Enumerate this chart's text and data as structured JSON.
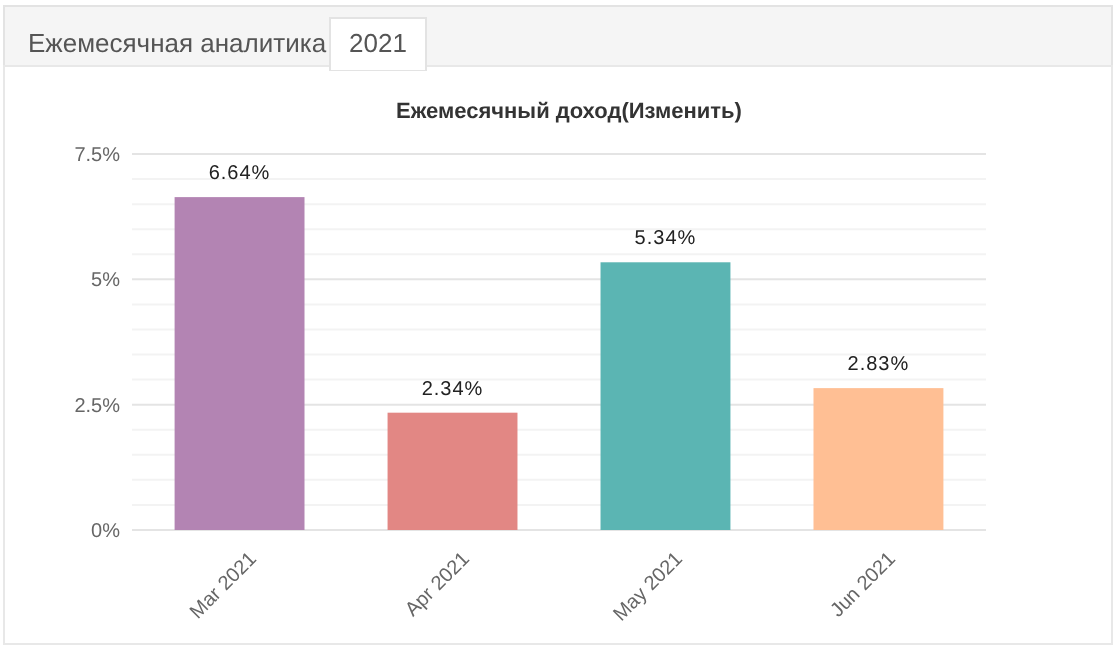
{
  "chart_data": {
    "type": "bar",
    "title": "Ежемесячный доход(Изменить)",
    "annotations": [
      "Ежемесячная аналитика",
      "2021"
    ],
    "categories": [
      "Mar 2021",
      "Apr 2021",
      "May 2021",
      "Jun 2021"
    ],
    "values": [
      6.64,
      2.34,
      5.34,
      2.83
    ],
    "colors": [
      "#b384b3",
      "#e28784",
      "#5bb5b3",
      "#ffbf94"
    ],
    "value_labels": [
      "6.64%",
      "2.34%",
      "5.34%",
      "2.83%"
    ],
    "ylim": [
      0,
      7.5
    ],
    "yticks": [
      {
        "value": 0,
        "label": "0%"
      },
      {
        "value": 0.5,
        "label": null
      },
      {
        "value": 1,
        "label": null
      },
      {
        "value": 1.5,
        "label": null
      },
      {
        "value": 2,
        "label": null
      },
      {
        "value": 2.5,
        "label": "2.5%"
      },
      {
        "value": 3,
        "label": null
      },
      {
        "value": 3.5,
        "label": null
      },
      {
        "value": 4,
        "label": null
      },
      {
        "value": 4.5,
        "label": null
      },
      {
        "value": 5,
        "label": "5%"
      },
      {
        "value": 5.5,
        "label": null
      },
      {
        "value": 6,
        "label": null
      },
      {
        "value": 6.5,
        "label": null
      },
      {
        "value": 7,
        "label": null
      },
      {
        "value": 7.5,
        "label": "7.5%"
      }
    ],
    "grid": "y"
  }
}
